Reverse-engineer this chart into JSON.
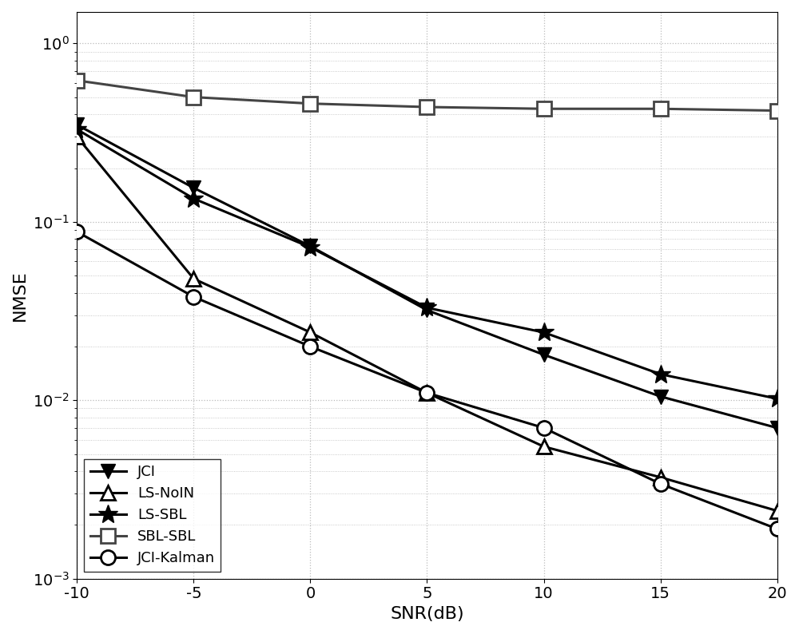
{
  "snr": [
    -10,
    -5,
    0,
    5,
    10,
    15,
    20
  ],
  "JCI": [
    0.35,
    0.155,
    0.073,
    0.032,
    0.018,
    0.0105,
    0.007
  ],
  "LS_NoIN": [
    0.3,
    0.048,
    0.024,
    0.011,
    0.0055,
    0.0037,
    0.0024
  ],
  "LS_SBL": [
    0.33,
    0.135,
    0.072,
    0.033,
    0.024,
    0.014,
    0.0102
  ],
  "SBL_SBL": [
    0.62,
    0.5,
    0.46,
    0.44,
    0.43,
    0.43,
    0.42
  ],
  "JCI_Kalman": [
    0.088,
    0.038,
    0.02,
    0.011,
    0.007,
    0.0034,
    0.0019
  ],
  "xlabel": "SNR(dB)",
  "ylabel": "NMSE",
  "ylim_min": 0.001,
  "ylim_max": 1.5,
  "xlim_min": -10,
  "xlim_max": 20,
  "background_color": "#ffffff",
  "grid_color": "#bbbbbb",
  "legend_labels": [
    "JCI",
    "LS-NoIN",
    "LS-SBL",
    "SBL-SBL",
    "JCI-Kalman"
  ]
}
